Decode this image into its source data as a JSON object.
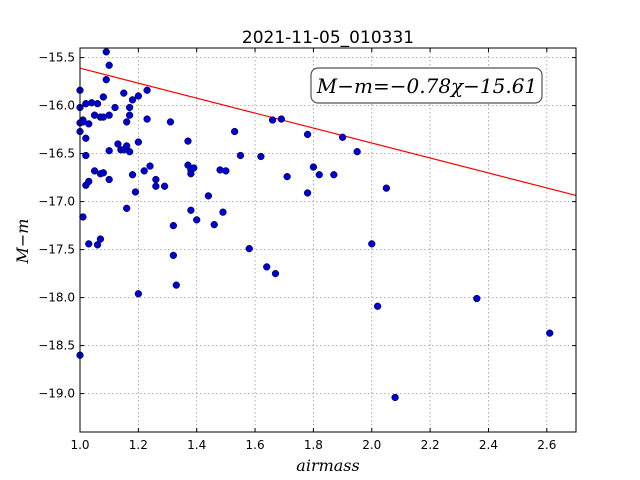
{
  "chart_data": {
    "type": "scatter",
    "title": "2021-11-05_010331",
    "xlabel": "airmass",
    "ylabel": "M−m",
    "xlim": [
      1.0,
      2.7
    ],
    "ylim": [
      -19.4,
      -15.4
    ],
    "y_inverted": true,
    "grid": true,
    "x_ticks": [
      1.0,
      1.2,
      1.4,
      1.6,
      1.8,
      2.0,
      2.2,
      2.4,
      2.6
    ],
    "x_tick_labels": [
      "1.0",
      "1.2",
      "1.4",
      "1.6",
      "1.8",
      "2.0",
      "2.2",
      "2.4",
      "2.6"
    ],
    "y_ticks": [
      -15.5,
      -16.0,
      -16.5,
      -17.0,
      -17.5,
      -18.0,
      -18.5,
      -19.0
    ],
    "y_tick_labels": [
      "−15.5",
      "−16.0",
      "−16.5",
      "−17.0",
      "−17.5",
      "−18.0",
      "−18.5",
      "−19.0"
    ],
    "annotation": "M−m=−0.78χ−15.61",
    "annotation_placement": "top-right",
    "colors": {
      "points": "#0000cc",
      "fit": "#ff0000",
      "grid": "#999999"
    },
    "fit_line": {
      "slope": -0.78,
      "intercept": -15.61
    },
    "points": [
      [
        1.0,
        -15.84
      ],
      [
        1.0,
        -16.02
      ],
      [
        1.0,
        -16.18
      ],
      [
        1.0,
        -16.27
      ],
      [
        1.0,
        -18.6
      ],
      [
        1.01,
        -16.15
      ],
      [
        1.01,
        -16.17
      ],
      [
        1.01,
        -17.16
      ],
      [
        1.02,
        -15.98
      ],
      [
        1.02,
        -16.34
      ],
      [
        1.02,
        -16.52
      ],
      [
        1.02,
        -16.83
      ],
      [
        1.03,
        -16.19
      ],
      [
        1.03,
        -16.79
      ],
      [
        1.03,
        -17.44
      ],
      [
        1.04,
        -15.97
      ],
      [
        1.05,
        -16.1
      ],
      [
        1.05,
        -16.68
      ],
      [
        1.06,
        -15.98
      ],
      [
        1.06,
        -17.45
      ],
      [
        1.07,
        -16.12
      ],
      [
        1.07,
        -16.71
      ],
      [
        1.07,
        -17.39
      ],
      [
        1.08,
        -15.91
      ],
      [
        1.08,
        -16.12
      ],
      [
        1.08,
        -16.7
      ],
      [
        1.09,
        -15.44
      ],
      [
        1.09,
        -15.73
      ],
      [
        1.1,
        -15.58
      ],
      [
        1.1,
        -16.1
      ],
      [
        1.1,
        -16.47
      ],
      [
        1.1,
        -16.77
      ],
      [
        1.12,
        -16.02
      ],
      [
        1.13,
        -16.4
      ],
      [
        1.14,
        -16.46
      ],
      [
        1.15,
        -15.87
      ],
      [
        1.15,
        -16.46
      ],
      [
        1.16,
        -16.17
      ],
      [
        1.16,
        -16.42
      ],
      [
        1.16,
        -17.07
      ],
      [
        1.17,
        -16.1
      ],
      [
        1.17,
        -16.02
      ],
      [
        1.17,
        -16.48
      ],
      [
        1.18,
        -15.94
      ],
      [
        1.18,
        -16.72
      ],
      [
        1.19,
        -16.9
      ],
      [
        1.2,
        -15.9
      ],
      [
        1.2,
        -16.38
      ],
      [
        1.2,
        -17.96
      ],
      [
        1.22,
        -16.68
      ],
      [
        1.23,
        -15.84
      ],
      [
        1.23,
        -16.14
      ],
      [
        1.24,
        -16.63
      ],
      [
        1.26,
        -16.77
      ],
      [
        1.26,
        -16.84
      ],
      [
        1.29,
        -16.84
      ],
      [
        1.31,
        -16.17
      ],
      [
        1.32,
        -17.56
      ],
      [
        1.32,
        -17.25
      ],
      [
        1.33,
        -17.87
      ],
      [
        1.37,
        -16.37
      ],
      [
        1.37,
        -16.62
      ],
      [
        1.38,
        -16.67
      ],
      [
        1.38,
        -16.71
      ],
      [
        1.38,
        -17.09
      ],
      [
        1.39,
        -16.65
      ],
      [
        1.4,
        -17.19
      ],
      [
        1.44,
        -16.94
      ],
      [
        1.46,
        -17.24
      ],
      [
        1.48,
        -16.67
      ],
      [
        1.49,
        -17.11
      ],
      [
        1.5,
        -16.68
      ],
      [
        1.53,
        -16.27
      ],
      [
        1.55,
        -16.52
      ],
      [
        1.58,
        -17.49
      ],
      [
        1.62,
        -16.53
      ],
      [
        1.64,
        -17.68
      ],
      [
        1.66,
        -16.15
      ],
      [
        1.67,
        -17.75
      ],
      [
        1.69,
        -16.14
      ],
      [
        1.71,
        -16.74
      ],
      [
        1.78,
        -16.3
      ],
      [
        1.78,
        -16.91
      ],
      [
        1.8,
        -16.64
      ],
      [
        1.82,
        -16.72
      ],
      [
        1.87,
        -16.72
      ],
      [
        1.9,
        -16.33
      ],
      [
        1.95,
        -16.48
      ],
      [
        2.0,
        -17.44
      ],
      [
        2.02,
        -18.09
      ],
      [
        2.05,
        -16.86
      ],
      [
        2.08,
        -19.04
      ],
      [
        2.36,
        -18.01
      ],
      [
        2.61,
        -18.37
      ]
    ]
  }
}
